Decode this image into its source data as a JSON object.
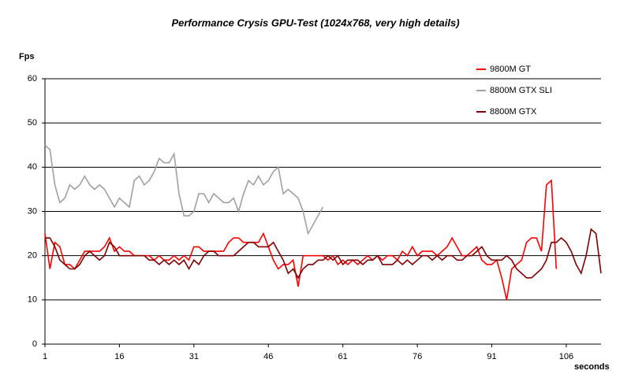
{
  "chart_data": {
    "type": "line",
    "title": "Performance Crysis GPU-Test (1024x768, very high details)",
    "y_label": "Fps",
    "x_label": "seconds",
    "x": [
      1,
      2,
      3,
      4,
      5,
      6,
      7,
      8,
      9,
      10,
      11,
      12,
      13,
      14,
      15,
      16,
      17,
      18,
      19,
      20,
      21,
      22,
      23,
      24,
      25,
      26,
      27,
      28,
      29,
      30,
      31,
      32,
      33,
      34,
      35,
      36,
      37,
      38,
      39,
      40,
      41,
      42,
      43,
      44,
      45,
      46,
      47,
      48,
      49,
      50,
      51,
      52,
      53,
      54,
      55,
      56,
      57,
      58,
      59,
      60,
      61,
      62,
      63,
      64,
      65,
      66,
      67,
      68,
      69,
      70,
      71,
      72,
      73,
      74,
      75,
      76,
      77,
      78,
      79,
      80,
      81,
      82,
      83,
      84,
      85,
      86,
      87,
      88,
      89,
      90,
      91,
      92,
      93,
      94,
      95,
      96,
      97,
      98,
      99,
      100,
      101,
      102,
      103,
      104,
      105,
      106,
      107,
      108,
      109,
      110,
      111,
      112,
      113
    ],
    "series": [
      {
        "name": "9800M GT",
        "color": "#ff0000",
        "values": [
          25,
          17,
          23,
          22,
          18,
          18,
          17,
          19,
          21,
          21,
          21,
          21,
          22,
          24,
          21,
          22,
          21,
          21,
          20,
          20,
          20,
          20,
          19,
          20,
          19,
          19,
          20,
          19,
          20,
          19,
          22,
          22,
          21,
          21,
          21,
          21,
          21,
          23,
          24,
          24,
          23,
          23,
          23,
          23,
          25,
          22,
          19,
          17,
          18,
          18,
          19,
          13,
          20,
          20,
          20,
          20,
          20,
          19,
          20,
          18,
          19,
          18,
          19,
          18,
          19,
          20,
          19,
          20,
          19,
          20,
          20,
          19,
          21,
          20,
          22,
          20,
          21,
          21,
          21,
          20,
          21,
          22,
          24,
          22,
          20,
          20,
          21,
          22,
          19,
          18,
          18,
          19,
          15,
          10,
          17,
          18,
          19,
          23,
          24,
          24,
          21,
          36,
          37,
          17,
          null,
          null,
          null,
          null,
          null,
          null,
          null,
          null,
          null
        ]
      },
      {
        "name": "8800M GTX SLI",
        "color": "#a0a0a0",
        "values": [
          45,
          44,
          36,
          32,
          33,
          36,
          35,
          36,
          38,
          36,
          35,
          36,
          35,
          33,
          31,
          33,
          32,
          31,
          37,
          38,
          36,
          37,
          39,
          42,
          41,
          41,
          43,
          34,
          29,
          29,
          30,
          34,
          34,
          32,
          34,
          33,
          32,
          32,
          33,
          30,
          34,
          37,
          36,
          38,
          36,
          37,
          39,
          40,
          34,
          35,
          34,
          33,
          30,
          25,
          27,
          29,
          31,
          null,
          null,
          null,
          null,
          null,
          null,
          null,
          null,
          null,
          null,
          null,
          null,
          null,
          null,
          null,
          null,
          null,
          null,
          null,
          null,
          null,
          null,
          null,
          null,
          null,
          null,
          null,
          null,
          null,
          null,
          null,
          null,
          null,
          null,
          null,
          null,
          null,
          null,
          null,
          null,
          null,
          null,
          null,
          null,
          null,
          null,
          null,
          null,
          null,
          null,
          null,
          null,
          null,
          null,
          null,
          null
        ]
      },
      {
        "name": "8800M GTX",
        "color": "#800000",
        "values": [
          24,
          24,
          22,
          19,
          18,
          17,
          17,
          18,
          20,
          21,
          20,
          19,
          20,
          23,
          22,
          20,
          20,
          20,
          20,
          20,
          20,
          19,
          19,
          18,
          19,
          18,
          19,
          18,
          19,
          17,
          19,
          18,
          20,
          21,
          21,
          20,
          20,
          20,
          20,
          21,
          22,
          23,
          23,
          22,
          22,
          22,
          23,
          21,
          19,
          16,
          17,
          15,
          17,
          18,
          18,
          19,
          19,
          20,
          19,
          20,
          18,
          19,
          19,
          19,
          18,
          19,
          19,
          20,
          18,
          18,
          18,
          19,
          18,
          19,
          18,
          19,
          20,
          20,
          19,
          20,
          19,
          20,
          20,
          19,
          19,
          20,
          20,
          21,
          22,
          20,
          19,
          19,
          19,
          20,
          19,
          17,
          16,
          15,
          15,
          16,
          17,
          19,
          23,
          23,
          24,
          23,
          21,
          18,
          16,
          20,
          26,
          25,
          16
        ]
      }
    ],
    "xlim": [
      1,
      113
    ],
    "ylim": [
      0,
      60
    ],
    "xticks": [
      1,
      16,
      31,
      46,
      61,
      76,
      91,
      106
    ],
    "yticks": [
      0,
      10,
      20,
      30,
      40,
      50,
      60
    ],
    "grid": true,
    "legend": "top-right"
  }
}
